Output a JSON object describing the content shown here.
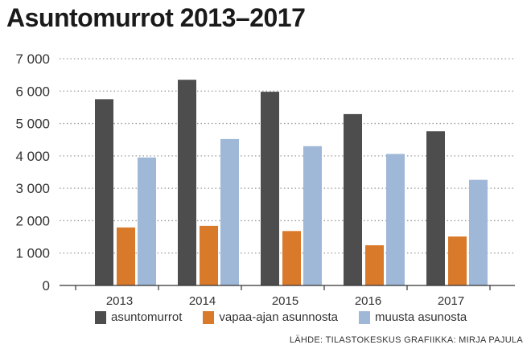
{
  "title": "Asuntomurrot 2013–2017",
  "source": "LÄHDE: TILASTOKESKUS GRAFIIKKA: MIRJA PAJULA",
  "chart_data": {
    "type": "bar",
    "title": "Asuntomurrot 2013–2017",
    "xlabel": "",
    "ylabel": "",
    "categories": [
      "2013",
      "2014",
      "2015",
      "2016",
      "2017"
    ],
    "ylim": [
      0,
      7000
    ],
    "yticks": [
      0,
      1000,
      2000,
      3000,
      4000,
      5000,
      6000,
      7000
    ],
    "ytick_labels": [
      "0",
      "1 000",
      "2 000",
      "3 000",
      "4 000",
      "5 000",
      "6 000",
      "7 000"
    ],
    "grid": "horizontal dotted",
    "legend_position": "bottom",
    "series": [
      {
        "name": "asuntomurrot",
        "color": "#4d4d4d",
        "values": [
          5750,
          6350,
          5980,
          5290,
          4760
        ]
      },
      {
        "name": "vapaa-ajan asunnosta",
        "color": "#d9792a",
        "values": [
          1790,
          1840,
          1680,
          1240,
          1510
        ]
      },
      {
        "name": "muusta asunosta",
        "color": "#9fb8d7",
        "values": [
          3950,
          4520,
          4300,
          4060,
          3260
        ]
      }
    ]
  }
}
